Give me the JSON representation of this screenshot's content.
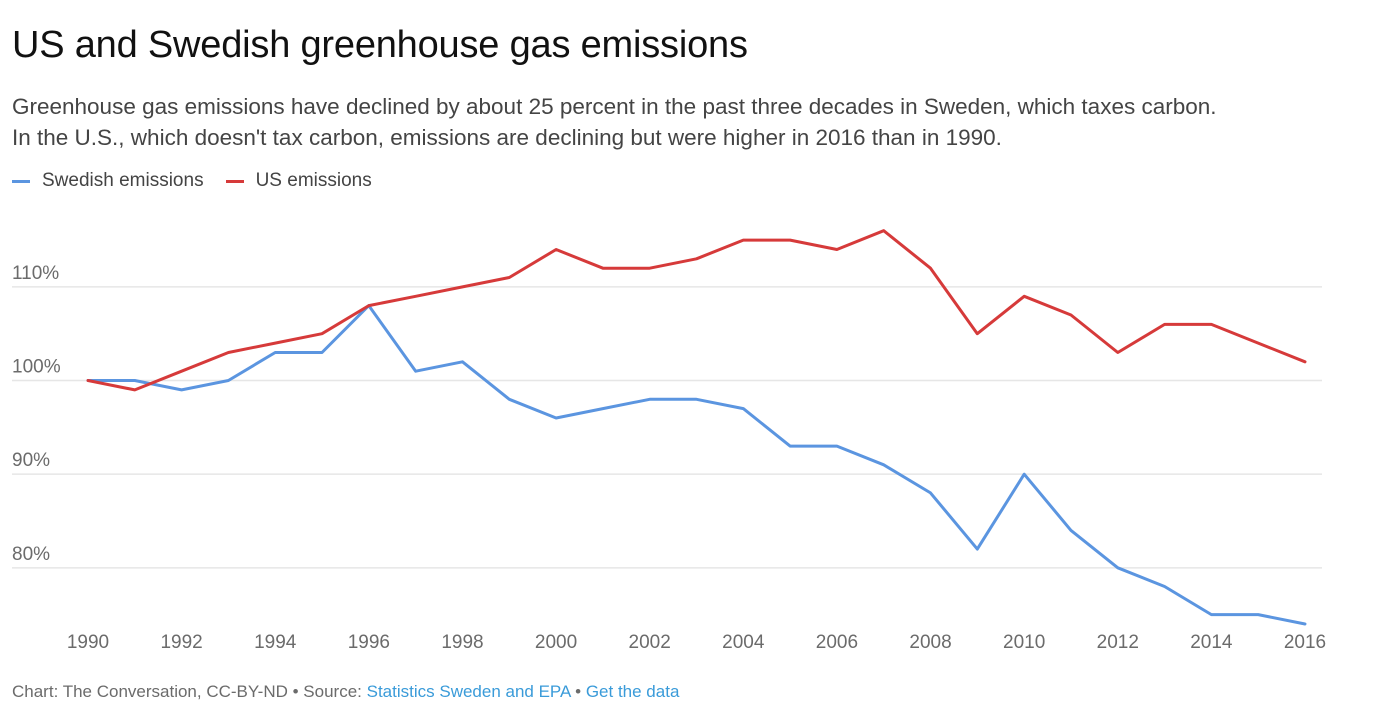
{
  "header": {
    "title": "US and Swedish greenhouse gas emissions",
    "subtitle_lines": [
      "Greenhouse gas emissions have declined by about 25 percent in the past three decades in Sweden, which taxes carbon.",
      "In the U.S., which doesn't tax carbon, emissions are declining but were higher in 2016 than in 1990."
    ]
  },
  "chart_data": {
    "type": "line",
    "x": [
      1990,
      1991,
      1992,
      1993,
      1994,
      1995,
      1996,
      1997,
      1998,
      1999,
      2000,
      2001,
      2002,
      2003,
      2004,
      2005,
      2006,
      2007,
      2008,
      2009,
      2010,
      2011,
      2012,
      2013,
      2014,
      2015,
      2016
    ],
    "x_ticks": [
      "1990",
      "1992",
      "1994",
      "1996",
      "1998",
      "2000",
      "2002",
      "2004",
      "2006",
      "2008",
      "2010",
      "2012",
      "2014",
      "2016"
    ],
    "y_ticks": [
      80,
      90,
      100,
      110
    ],
    "y_tick_labels": [
      "80%",
      "90%",
      "100%",
      "110%"
    ],
    "ylim": [
      74,
      118
    ],
    "xlim": [
      1990,
      2016
    ],
    "grid": "horizontal",
    "legend_position": "top-left",
    "series": [
      {
        "name": "Swedish emissions",
        "color": "#5b95e0",
        "values": [
          100,
          100,
          99,
          100,
          103,
          103,
          108,
          101,
          102,
          98,
          96,
          97,
          98,
          98,
          97,
          93,
          93,
          91,
          88,
          82,
          90,
          84,
          80,
          78,
          75,
          75,
          74
        ]
      },
      {
        "name": "US emissions",
        "color": "#d63a3a",
        "values": [
          100,
          99,
          101,
          103,
          104,
          105,
          108,
          109,
          110,
          111,
          114,
          112,
          112,
          113,
          115,
          115,
          114,
          116,
          112,
          105,
          109,
          107,
          103,
          106,
          106,
          104,
          102
        ]
      }
    ]
  },
  "footer": {
    "credit": "Chart: The Conversation, CC-BY-ND",
    "separator": " • ",
    "source_prefix": "Source: ",
    "source_link": "Statistics Sweden and EPA",
    "get_data_link": "Get the data"
  }
}
